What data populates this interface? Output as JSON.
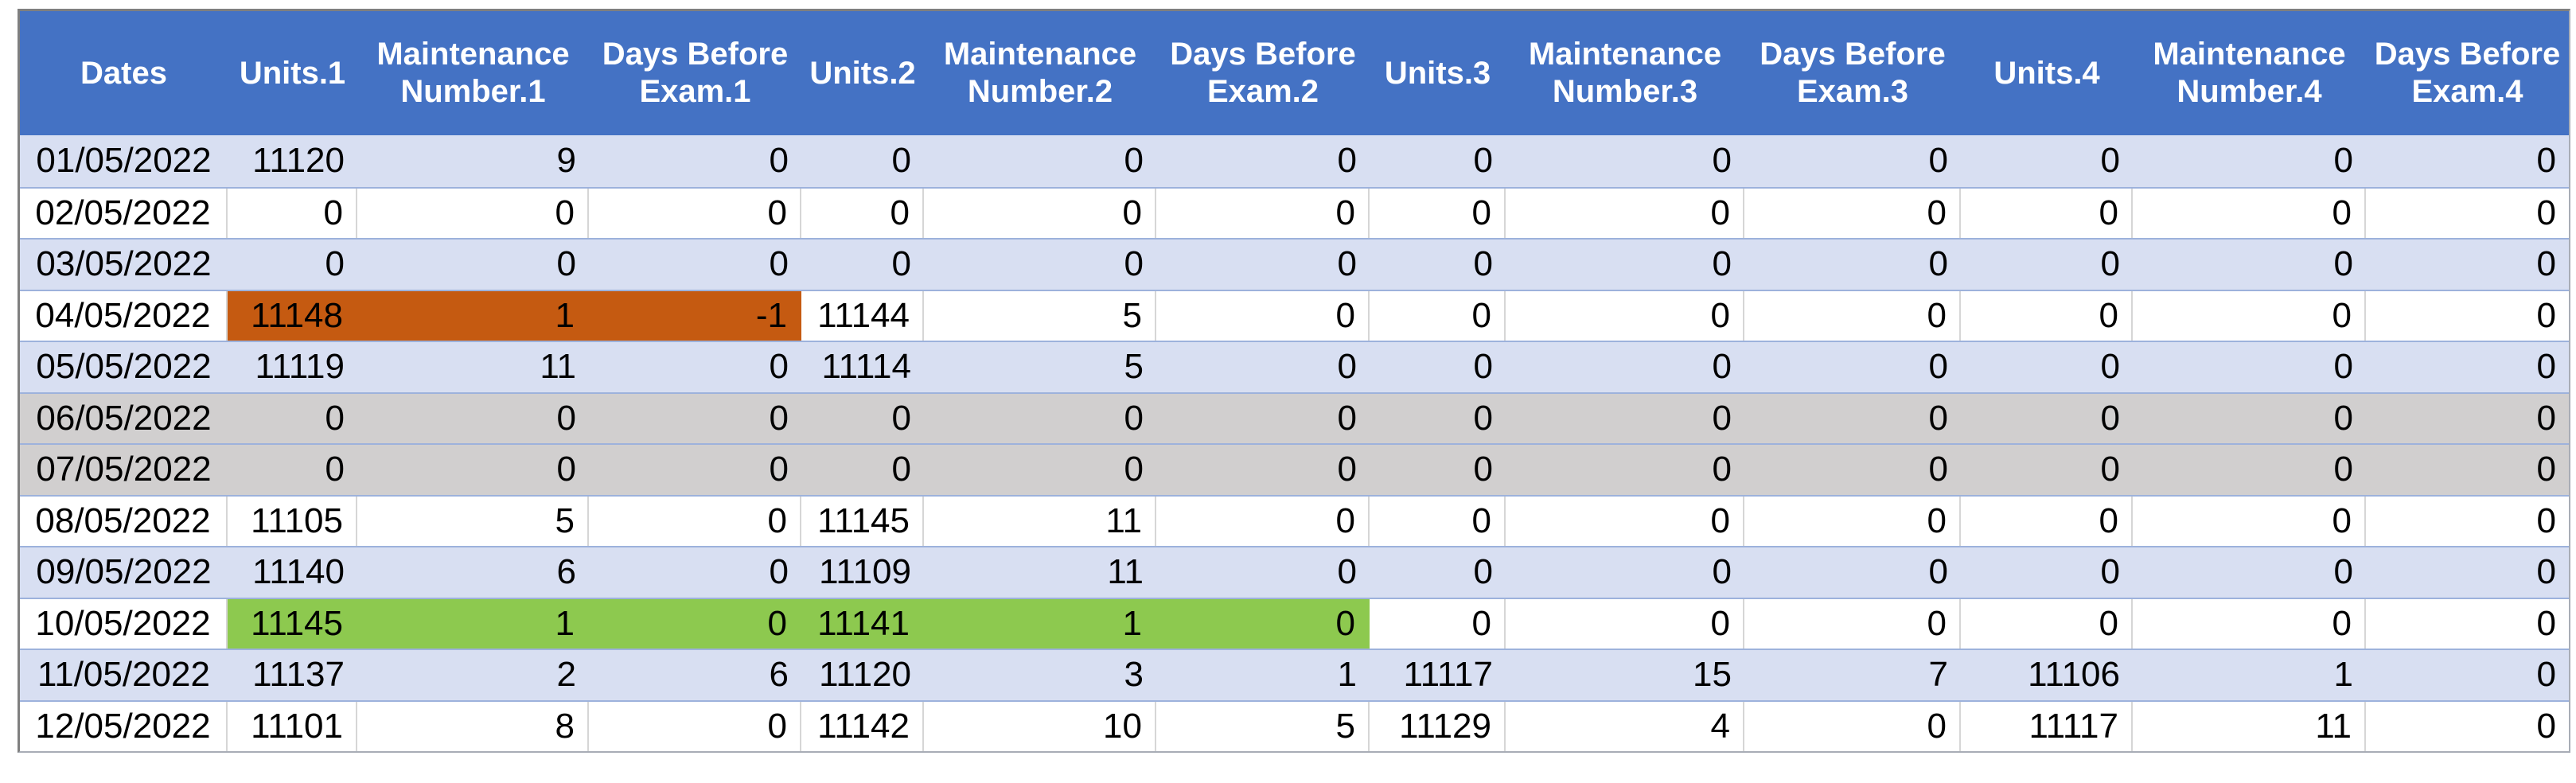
{
  "table": {
    "columns": [
      "Dates",
      "Units.1",
      "Maintenance Number.1",
      "Days Before Exam.1",
      "Units.2",
      "Maintenance Number.2",
      "Days Before Exam.2",
      "Units.3",
      "Maintenance Number.3",
      "Days Before Exam.3",
      "Units.4",
      "Maintenance Number.4",
      "Days Before Exam.4"
    ],
    "rows": [
      {
        "date": "01/05/2022",
        "band": "blue",
        "values": [
          "11120",
          "9",
          "0",
          "0",
          "0",
          "0",
          "0",
          "0",
          "0",
          "0",
          "0",
          "0"
        ],
        "highlight": null
      },
      {
        "date": "02/05/2022",
        "band": "white",
        "values": [
          "0",
          "0",
          "0",
          "0",
          "0",
          "0",
          "0",
          "0",
          "0",
          "0",
          "0",
          "0"
        ],
        "highlight": null
      },
      {
        "date": "03/05/2022",
        "band": "blue",
        "values": [
          "0",
          "0",
          "0",
          "0",
          "0",
          "0",
          "0",
          "0",
          "0",
          "0",
          "0",
          "0"
        ],
        "highlight": null
      },
      {
        "date": "04/05/2022",
        "band": "white",
        "values": [
          "11148",
          "1",
          "-1",
          "11144",
          "5",
          "0",
          "0",
          "0",
          "0",
          "0",
          "0",
          "0"
        ],
        "highlight": {
          "color": "highlight_orange",
          "cols": [
            0,
            1,
            2
          ]
        }
      },
      {
        "date": "05/05/2022",
        "band": "blue",
        "values": [
          "11119",
          "11",
          "0",
          "11114",
          "5",
          "0",
          "0",
          "0",
          "0",
          "0",
          "0",
          "0"
        ],
        "highlight": null
      },
      {
        "date": "06/05/2022",
        "band": "gray",
        "values": [
          "0",
          "0",
          "0",
          "0",
          "0",
          "0",
          "0",
          "0",
          "0",
          "0",
          "0",
          "0"
        ],
        "highlight": null
      },
      {
        "date": "07/05/2022",
        "band": "gray",
        "values": [
          "0",
          "0",
          "0",
          "0",
          "0",
          "0",
          "0",
          "0",
          "0",
          "0",
          "0",
          "0"
        ],
        "highlight": null
      },
      {
        "date": "08/05/2022",
        "band": "white",
        "values": [
          "11105",
          "5",
          "0",
          "11145",
          "11",
          "0",
          "0",
          "0",
          "0",
          "0",
          "0",
          "0"
        ],
        "highlight": null
      },
      {
        "date": "09/05/2022",
        "band": "blue",
        "values": [
          "11140",
          "6",
          "0",
          "11109",
          "11",
          "0",
          "0",
          "0",
          "0",
          "0",
          "0",
          "0"
        ],
        "highlight": null
      },
      {
        "date": "10/05/2022",
        "band": "white",
        "values": [
          "11145",
          "1",
          "0",
          "11141",
          "1",
          "0",
          "0",
          "0",
          "0",
          "0",
          "0",
          "0"
        ],
        "highlight": {
          "color": "highlight_green",
          "cols": [
            0,
            1,
            2,
            3,
            4,
            5
          ]
        }
      },
      {
        "date": "11/05/2022",
        "band": "blue",
        "values": [
          "11137",
          "2",
          "6",
          "11120",
          "3",
          "1",
          "11117",
          "15",
          "7",
          "11106",
          "1",
          "0"
        ],
        "highlight": null
      },
      {
        "date": "12/05/2022",
        "band": "white",
        "values": [
          "11101",
          "8",
          "0",
          "11142",
          "10",
          "5",
          "11129",
          "4",
          "0",
          "11117",
          "11",
          "0"
        ],
        "highlight": null
      }
    ]
  },
  "colors": {
    "header_bg": "#4472C4",
    "header_text": "#FFFFFF",
    "band_blue": "#D8DFF2",
    "band_gray": "#D1CFCF",
    "highlight_orange": "#C55A11",
    "highlight_green": "#8DC94F",
    "cell_text": "#000000",
    "grid_line": "#9DB2DC",
    "cell_border": "#D6D6D6",
    "outer_border": "#7F7F7F"
  }
}
